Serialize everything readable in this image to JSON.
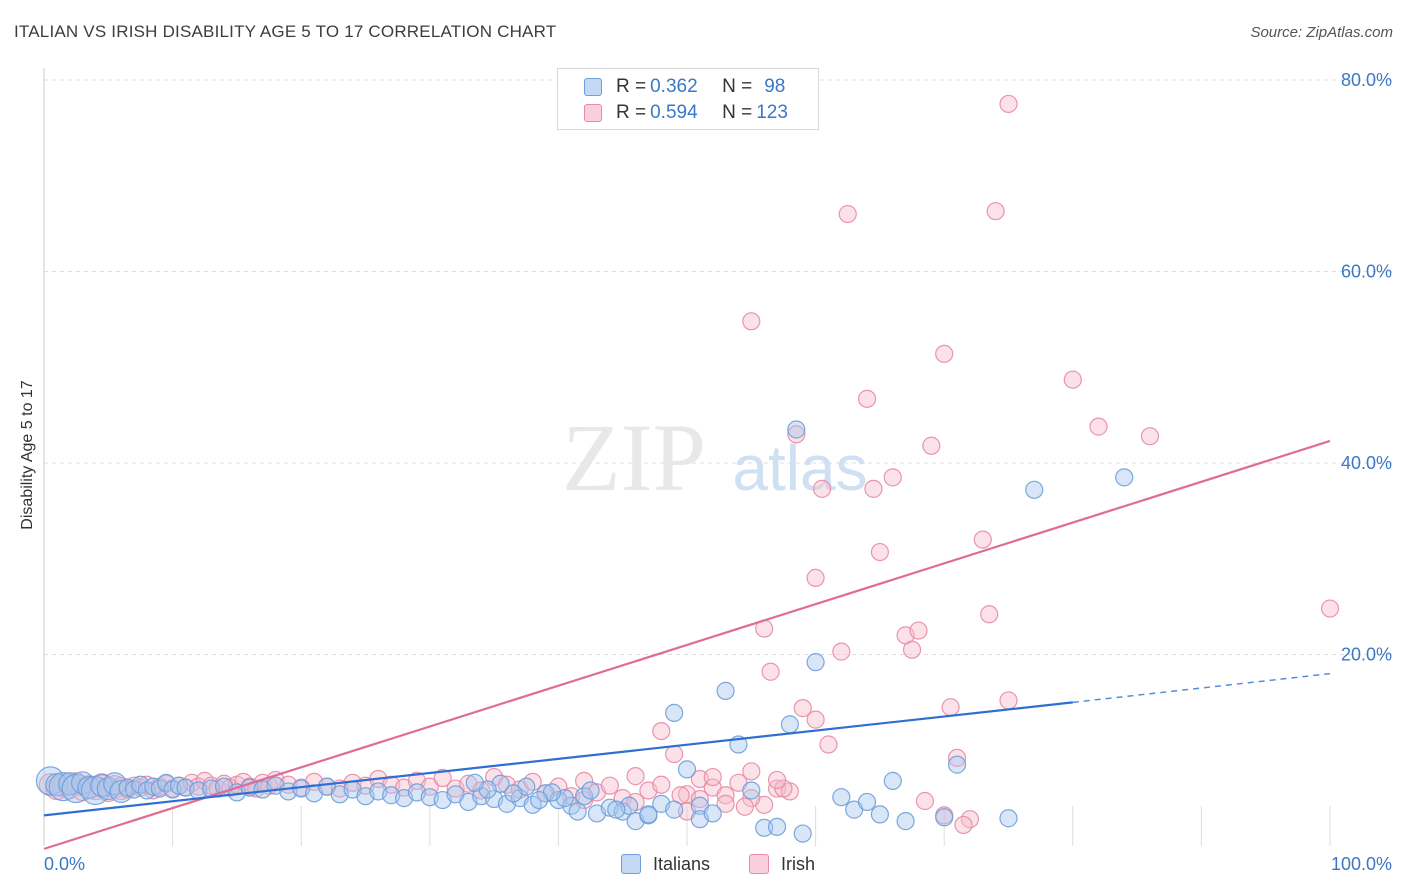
{
  "header": {
    "title": "ITALIAN VS IRISH DISABILITY AGE 5 TO 17 CORRELATION CHART",
    "source": "Source: ZipAtlas.com"
  },
  "watermark": {
    "zip": "ZIP",
    "atlas": "atlas"
  },
  "legend_top": {
    "rows": [
      {
        "r_label": "R = ",
        "r_value": "0.362",
        "n_label": "N = ",
        "n_value": "98"
      },
      {
        "r_label": "R = ",
        "r_value": "0.594",
        "n_label": "N = ",
        "n_value": "123"
      }
    ]
  },
  "legend_bottom": {
    "items": [
      {
        "label": "Italians"
      },
      {
        "label": "Irish"
      }
    ]
  },
  "colors": {
    "blue_fill": "#a9c8ee",
    "blue_stroke": "#6e9fdc",
    "blue_line": "#2e6fd1",
    "pink_fill": "#f6bccd",
    "pink_stroke": "#e88aa6",
    "pink_line": "#e06b96",
    "grid": "#dddddd",
    "tick_label": "#3a78c6"
  },
  "chart_data": {
    "type": "scatter",
    "title": "ITALIAN VS IRISH DISABILITY AGE 5 TO 17 CORRELATION CHART",
    "xlabel": "",
    "ylabel": "Disability Age 5 to 17",
    "xlim": [
      0,
      100
    ],
    "ylim": [
      0,
      80
    ],
    "x_tick_labels": [
      "0.0%",
      "100.0%"
    ],
    "y_ticks": [
      20,
      40,
      60,
      80
    ],
    "y_tick_labels": [
      "20.0%",
      "40.0%",
      "60.0%",
      "80.0%"
    ],
    "grid": true,
    "legend_position": "top-center",
    "series": [
      {
        "name": "Italians",
        "color": "#6e9fdc",
        "R": 0.362,
        "N": 98,
        "trend": {
          "x": [
            0,
            80
          ],
          "y": [
            3.2,
            15.0
          ],
          "dashed_to": [
            100,
            18.0
          ]
        },
        "points": [
          [
            0.5,
            6.8,
            3
          ],
          [
            1,
            6.4,
            2
          ],
          [
            1.5,
            6.2,
            3
          ],
          [
            2,
            6.5,
            2
          ],
          [
            2.5,
            6.0,
            3
          ],
          [
            3,
            6.6,
            2
          ],
          [
            3.5,
            6.1,
            2
          ],
          [
            4,
            5.8,
            3
          ],
          [
            4.5,
            6.3,
            2
          ],
          [
            5,
            6.0,
            2
          ],
          [
            5.5,
            6.5,
            2
          ],
          [
            6,
            5.7,
            2
          ],
          [
            6.5,
            6.1,
            1
          ],
          [
            7,
            5.9,
            1
          ],
          [
            7.5,
            6.4,
            1
          ],
          [
            8,
            5.8,
            1
          ],
          [
            8.5,
            6.2,
            1
          ],
          [
            9,
            6.0,
            1
          ],
          [
            9.5,
            6.6,
            1
          ],
          [
            10,
            5.9,
            1
          ],
          [
            10.5,
            6.3,
            1
          ],
          [
            11,
            6.1,
            1
          ],
          [
            12,
            5.8,
            1
          ],
          [
            13,
            6.0,
            1
          ],
          [
            14,
            6.2,
            1
          ],
          [
            15,
            5.6,
            1
          ],
          [
            16,
            6.1,
            1
          ],
          [
            17,
            5.9,
            1
          ],
          [
            18,
            6.3,
            1
          ],
          [
            19,
            5.7,
            1
          ],
          [
            20,
            6.0,
            1
          ],
          [
            21,
            5.5,
            1
          ],
          [
            22,
            6.2,
            1
          ],
          [
            23,
            5.4,
            1
          ],
          [
            24,
            5.9,
            1
          ],
          [
            25,
            5.2,
            1
          ],
          [
            26,
            5.7,
            1
          ],
          [
            27,
            5.3,
            1
          ],
          [
            28,
            5.0,
            1
          ],
          [
            29,
            5.6,
            1
          ],
          [
            30,
            5.1,
            1
          ],
          [
            31,
            4.8,
            1
          ],
          [
            32,
            5.4,
            1
          ],
          [
            33,
            4.6,
            1
          ],
          [
            34,
            5.2,
            1
          ],
          [
            35,
            4.9,
            1
          ],
          [
            36,
            4.4,
            1
          ],
          [
            37,
            5.0,
            1
          ],
          [
            38,
            4.3,
            1
          ],
          [
            39,
            5.5,
            1
          ],
          [
            40,
            4.8,
            1
          ],
          [
            41,
            4.2,
            1
          ],
          [
            42,
            5.2,
            1
          ],
          [
            43,
            3.4,
            1
          ],
          [
            44,
            4.0,
            1
          ],
          [
            45,
            3.6,
            1
          ],
          [
            46,
            2.6,
            1
          ],
          [
            47,
            3.2,
            1
          ],
          [
            48,
            4.4,
            1
          ],
          [
            49,
            3.8,
            1
          ],
          [
            50,
            8.0,
            1
          ],
          [
            51,
            4.2,
            1
          ],
          [
            53,
            16.2,
            1
          ],
          [
            54,
            10.6,
            1
          ],
          [
            55,
            5.8,
            1
          ],
          [
            56,
            1.9,
            1
          ],
          [
            57,
            2.0,
            1
          ],
          [
            58,
            12.7,
            1
          ],
          [
            59,
            1.3,
            1
          ],
          [
            60,
            19.2,
            1
          ],
          [
            58.5,
            43.5,
            1
          ],
          [
            62,
            5.1,
            1
          ],
          [
            63,
            3.8,
            1
          ],
          [
            64,
            4.6,
            1
          ],
          [
            65,
            3.3,
            1
          ],
          [
            66,
            6.8,
            1
          ],
          [
            67,
            2.6,
            1
          ],
          [
            70,
            3.0,
            1
          ],
          [
            71,
            8.5,
            1
          ],
          [
            75,
            2.9,
            1
          ],
          [
            84,
            38.5,
            1
          ],
          [
            77,
            37.2,
            1
          ],
          [
            47,
            3.3,
            1
          ],
          [
            49,
            13.9,
            1
          ],
          [
            51,
            2.8,
            1
          ],
          [
            52,
            3.4,
            1
          ],
          [
            45.5,
            4.2,
            1
          ],
          [
            44.5,
            3.8,
            1
          ],
          [
            42.5,
            5.8,
            1
          ],
          [
            41.5,
            3.6,
            1
          ],
          [
            40.5,
            5.0,
            1
          ],
          [
            39.5,
            5.6,
            1
          ],
          [
            38.5,
            4.8,
            1
          ],
          [
            37.5,
            6.2,
            1
          ],
          [
            36.5,
            5.5,
            1
          ],
          [
            35.5,
            6.5,
            1
          ],
          [
            34.5,
            5.9,
            1
          ],
          [
            33.5,
            6.6,
            1
          ]
        ]
      },
      {
        "name": "Irish",
        "color": "#e88aa6",
        "R": 0.594,
        "N": 123,
        "trend": {
          "x": [
            0,
            100
          ],
          "y": [
            -0.3,
            42.3
          ]
        },
        "points": [
          [
            0.5,
            6.4,
            2
          ],
          [
            1,
            6.0,
            2
          ],
          [
            1.5,
            6.3,
            2
          ],
          [
            2,
            6.1,
            2
          ],
          [
            2.5,
            6.5,
            2
          ],
          [
            3,
            5.9,
            2
          ],
          [
            3.5,
            6.2,
            2
          ],
          [
            4,
            6.0,
            2
          ],
          [
            4.5,
            6.4,
            2
          ],
          [
            5,
            5.8,
            2
          ],
          [
            5.5,
            6.2,
            2
          ],
          [
            6,
            6.0,
            2
          ],
          [
            6.5,
            5.9,
            1
          ],
          [
            7,
            6.3,
            1
          ],
          [
            7.5,
            6.1,
            1
          ],
          [
            8,
            6.4,
            1
          ],
          [
            8.5,
            5.8,
            1
          ],
          [
            9,
            6.2,
            1
          ],
          [
            9.5,
            6.5,
            1
          ],
          [
            10,
            6.0,
            1
          ],
          [
            10.5,
            6.3,
            1
          ],
          [
            11,
            6.1,
            1
          ],
          [
            11.5,
            6.6,
            1
          ],
          [
            12,
            6.2,
            1
          ],
          [
            12.5,
            6.8,
            1
          ],
          [
            13,
            6.3,
            1
          ],
          [
            13.5,
            6.0,
            1
          ],
          [
            14,
            6.5,
            1
          ],
          [
            14.5,
            6.1,
            1
          ],
          [
            15,
            6.4,
            1
          ],
          [
            15.5,
            6.7,
            1
          ],
          [
            16,
            6.2,
            1
          ],
          [
            16.5,
            6.0,
            1
          ],
          [
            17,
            6.6,
            1
          ],
          [
            17.5,
            6.3,
            1
          ],
          [
            18,
            6.9,
            1
          ],
          [
            19,
            6.4,
            1
          ],
          [
            20,
            6.1,
            1
          ],
          [
            21,
            6.7,
            1
          ],
          [
            22,
            6.2,
            1
          ],
          [
            23,
            6.0,
            1
          ],
          [
            24,
            6.6,
            1
          ],
          [
            25,
            6.3,
            1
          ],
          [
            26,
            7.0,
            1
          ],
          [
            27,
            6.4,
            1
          ],
          [
            28,
            6.1,
            1
          ],
          [
            29,
            6.8,
            1
          ],
          [
            30,
            6.2,
            1
          ],
          [
            31,
            7.1,
            1
          ],
          [
            32,
            6.0,
            1
          ],
          [
            33,
            6.5,
            1
          ],
          [
            34,
            5.8,
            1
          ],
          [
            35,
            7.2,
            1
          ],
          [
            36,
            6.4,
            1
          ],
          [
            37,
            5.9,
            1
          ],
          [
            38,
            6.7,
            1
          ],
          [
            39,
            5.5,
            1
          ],
          [
            40,
            6.2,
            1
          ],
          [
            41,
            5.2,
            1
          ],
          [
            42,
            6.8,
            1
          ],
          [
            43,
            5.6,
            1
          ],
          [
            44,
            6.3,
            1
          ],
          [
            45,
            5.0,
            1
          ],
          [
            46,
            7.3,
            1
          ],
          [
            47,
            5.8,
            1
          ],
          [
            48,
            6.4,
            1
          ],
          [
            49,
            9.6,
            1
          ],
          [
            50,
            5.4,
            1
          ],
          [
            51,
            7.0,
            1
          ],
          [
            52,
            6.1,
            1
          ],
          [
            53,
            5.3,
            1
          ],
          [
            54,
            6.6,
            1
          ],
          [
            55,
            7.8,
            1
          ],
          [
            56,
            4.3,
            1
          ],
          [
            57,
            6.0,
            1
          ],
          [
            58,
            5.7,
            1
          ],
          [
            59,
            14.4,
            1
          ],
          [
            60,
            13.2,
            1
          ],
          [
            61,
            10.6,
            1
          ],
          [
            62,
            20.3,
            1
          ],
          [
            48,
            12.0,
            1
          ],
          [
            42,
            4.8,
            1
          ],
          [
            46,
            4.6,
            1
          ],
          [
            50,
            3.6,
            1
          ],
          [
            53,
            4.4,
            1
          ],
          [
            55,
            5.0,
            1
          ],
          [
            57.5,
            6.0,
            1
          ],
          [
            58.5,
            43.0,
            1
          ],
          [
            56.5,
            18.2,
            1
          ],
          [
            56,
            22.7,
            1
          ],
          [
            55,
            54.8,
            1
          ],
          [
            60.5,
            37.3,
            1
          ],
          [
            60,
            28.0,
            1
          ],
          [
            62.5,
            66.0,
            1
          ],
          [
            64,
            46.7,
            1
          ],
          [
            64.5,
            37.3,
            1
          ],
          [
            65,
            30.7,
            1
          ],
          [
            66,
            38.5,
            1
          ],
          [
            67,
            22.0,
            1
          ],
          [
            67.5,
            20.5,
            1
          ],
          [
            68,
            22.5,
            1
          ],
          [
            69,
            41.8,
            1
          ],
          [
            70,
            51.4,
            1
          ],
          [
            70.5,
            14.5,
            1
          ],
          [
            71,
            9.2,
            1
          ],
          [
            72,
            2.8,
            1
          ],
          [
            73,
            32.0,
            1
          ],
          [
            73.5,
            24.2,
            1
          ],
          [
            74,
            66.3,
            1
          ],
          [
            75,
            77.5,
            1
          ],
          [
            68.5,
            4.7,
            1
          ],
          [
            70,
            3.2,
            1
          ],
          [
            71.5,
            2.2,
            1
          ],
          [
            80,
            48.7,
            1
          ],
          [
            82,
            43.8,
            1
          ],
          [
            86,
            42.8,
            1
          ],
          [
            75,
            15.2,
            1
          ],
          [
            100,
            24.8,
            1
          ],
          [
            57,
            6.9,
            1
          ],
          [
            54.5,
            4.1,
            1
          ],
          [
            52,
            7.2,
            1
          ],
          [
            51,
            4.9,
            1
          ],
          [
            49.5,
            5.3,
            1
          ]
        ]
      }
    ]
  }
}
